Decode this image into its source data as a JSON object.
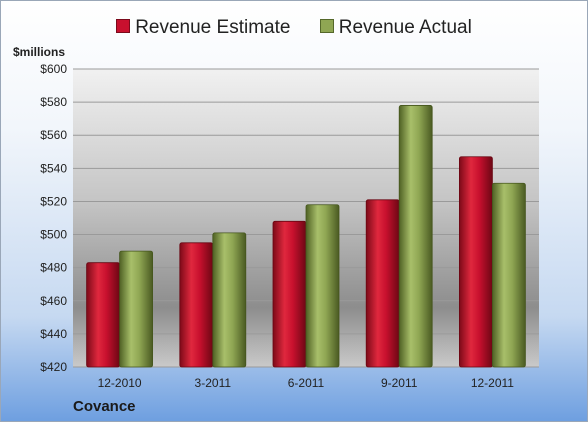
{
  "legend": {
    "estimate_label": "Revenue Estimate",
    "actual_label": "Revenue Actual"
  },
  "unit_label": "$millions",
  "footer": {
    "company": "Covance"
  },
  "colors": {
    "estimate": "#c8102e",
    "actual": "#8fa653"
  },
  "chart_data": {
    "type": "bar",
    "categories": [
      "12-2010",
      "3-2011",
      "6-2011",
      "9-2011",
      "12-2011"
    ],
    "series": [
      {
        "name": "Revenue Estimate",
        "values": [
          483,
          495,
          508,
          521,
          547
        ]
      },
      {
        "name": "Revenue Actual",
        "values": [
          490,
          501,
          518,
          578,
          531
        ]
      }
    ],
    "ylim": [
      420,
      600
    ],
    "yticks": [
      "$600",
      "$580",
      "$560",
      "$540",
      "$520",
      "$500",
      "$480",
      "$460",
      "$440",
      "$420"
    ],
    "ytick_values": [
      600,
      580,
      560,
      540,
      520,
      500,
      480,
      460,
      440,
      420
    ],
    "grid": true,
    "legend_position": "top-center"
  }
}
